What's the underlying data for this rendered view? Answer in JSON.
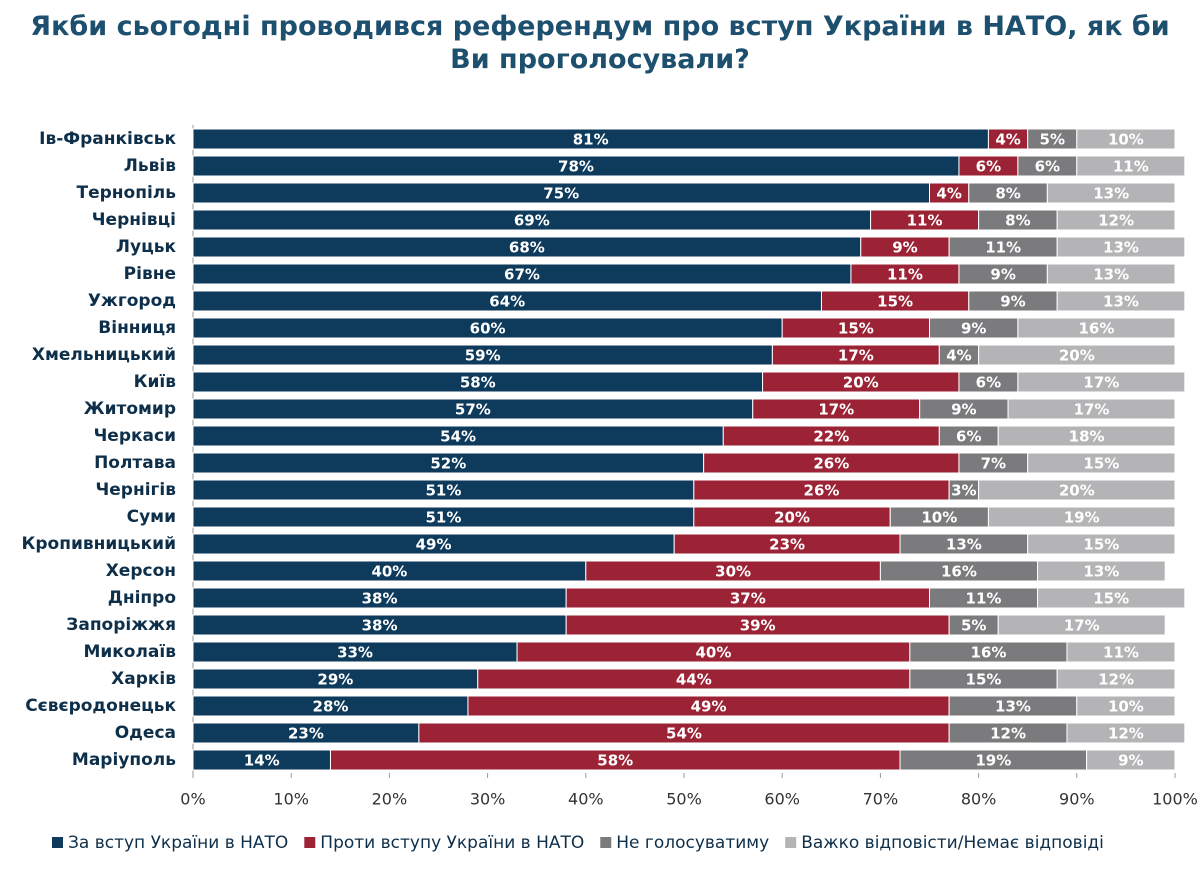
{
  "chart_data": {
    "type": "stacked-bar-horizontal",
    "title": "Якби сьогодні проводився референдум про вступ України в НАТО, як би Ви проголосували?",
    "categories": [
      "Ів-Франківськ",
      "Львів",
      "Тернопіль",
      "Чернівці",
      "Луцьк",
      "Рівне",
      "Ужгород",
      "Вінниця",
      "Хмельницький",
      "Київ",
      "Житомир",
      "Черкаси",
      "Полтава",
      "Чернігів",
      "Суми",
      "Кропивницький",
      "Херсон",
      "Дніпро",
      "Запоріжжя",
      "Миколаїв",
      "Харків",
      "Сєвєродонецьк",
      "Одеса",
      "Маріуполь"
    ],
    "series": [
      {
        "name": "За вступ України в НАТО",
        "color": "#0e3a5c",
        "values": [
          81,
          78,
          75,
          69,
          68,
          67,
          64,
          60,
          59,
          58,
          57,
          54,
          52,
          51,
          51,
          49,
          40,
          38,
          38,
          33,
          29,
          28,
          23,
          14
        ],
        "value_labels": [
          "81%",
          "78%",
          "75%",
          "69%",
          "68%",
          "67%",
          "64%",
          "60%",
          "59%",
          "58%",
          "57%",
          "54%",
          "52%",
          "51%",
          "51%",
          "49%",
          "40%",
          "38%",
          "38%",
          "33%",
          "29%",
          "28%",
          "23%",
          "14%"
        ]
      },
      {
        "name": "Проти вступу України в НАТО",
        "color": "#9b2335",
        "values": [
          4,
          6,
          4,
          11,
          9,
          11,
          15,
          15,
          17,
          20,
          17,
          22,
          26,
          26,
          20,
          23,
          30,
          37,
          39,
          40,
          44,
          49,
          54,
          58
        ],
        "value_labels": [
          "4%",
          "6%",
          "4%",
          "11%",
          "9%",
          "11%",
          "15%",
          "15%",
          "17%",
          "20%",
          "17%",
          "22%",
          "26%",
          "26%",
          "20%",
          "23%",
          "30%",
          "37%",
          "39%",
          "40%",
          "44%",
          "49%",
          "54%",
          "58%"
        ]
      },
      {
        "name": "Не голосуватиму",
        "color": "#7b7b7e",
        "values": [
          5,
          6,
          8,
          8,
          11,
          9,
          9,
          9,
          4,
          6,
          9,
          6,
          7,
          3,
          10,
          13,
          16,
          11,
          5,
          16,
          15,
          13,
          12,
          19
        ],
        "value_labels": [
          "5%",
          "6%",
          "8%",
          "8%",
          "11%",
          "9%",
          "9%",
          "9%",
          "4%",
          "6%",
          "9%",
          "6%",
          "7%",
          "3%",
          "10%",
          "13%",
          "16%",
          "11%",
          "5%",
          "16%",
          "15%",
          "13%",
          "12%",
          "19%"
        ]
      },
      {
        "name": "Важко відповісти/Немає відповіді",
        "color": "#b4b4b6",
        "values": [
          10,
          11,
          13,
          12,
          13,
          13,
          13,
          16,
          20,
          17,
          17,
          18,
          15,
          20,
          19,
          15,
          13,
          15,
          17,
          11,
          12,
          10,
          12,
          9
        ],
        "value_labels": [
          "10%",
          "11%",
          "13%",
          "12%",
          "13%",
          "13%",
          "13%",
          "16%",
          "20%",
          "17%",
          "17%",
          "18%",
          "15%",
          "20%",
          "19%",
          "15%",
          "13%",
          "15%",
          "17%",
          "11%",
          "12%",
          "10%",
          "12%",
          "9%"
        ]
      }
    ],
    "xlim": [
      0,
      100
    ],
    "xticks": [
      {
        "value": 0,
        "label": "0%"
      },
      {
        "value": 10,
        "label": "10%"
      },
      {
        "value": 20,
        "label": "20%"
      },
      {
        "value": 30,
        "label": "30%"
      },
      {
        "value": 40,
        "label": "40%"
      },
      {
        "value": 50,
        "label": "50%"
      },
      {
        "value": 60,
        "label": "60%"
      },
      {
        "value": 70,
        "label": "70%"
      },
      {
        "value": 80,
        "label": "80%"
      },
      {
        "value": 90,
        "label": "90%"
      },
      {
        "value": 100,
        "label": "100%"
      }
    ],
    "legend": "bottom"
  }
}
